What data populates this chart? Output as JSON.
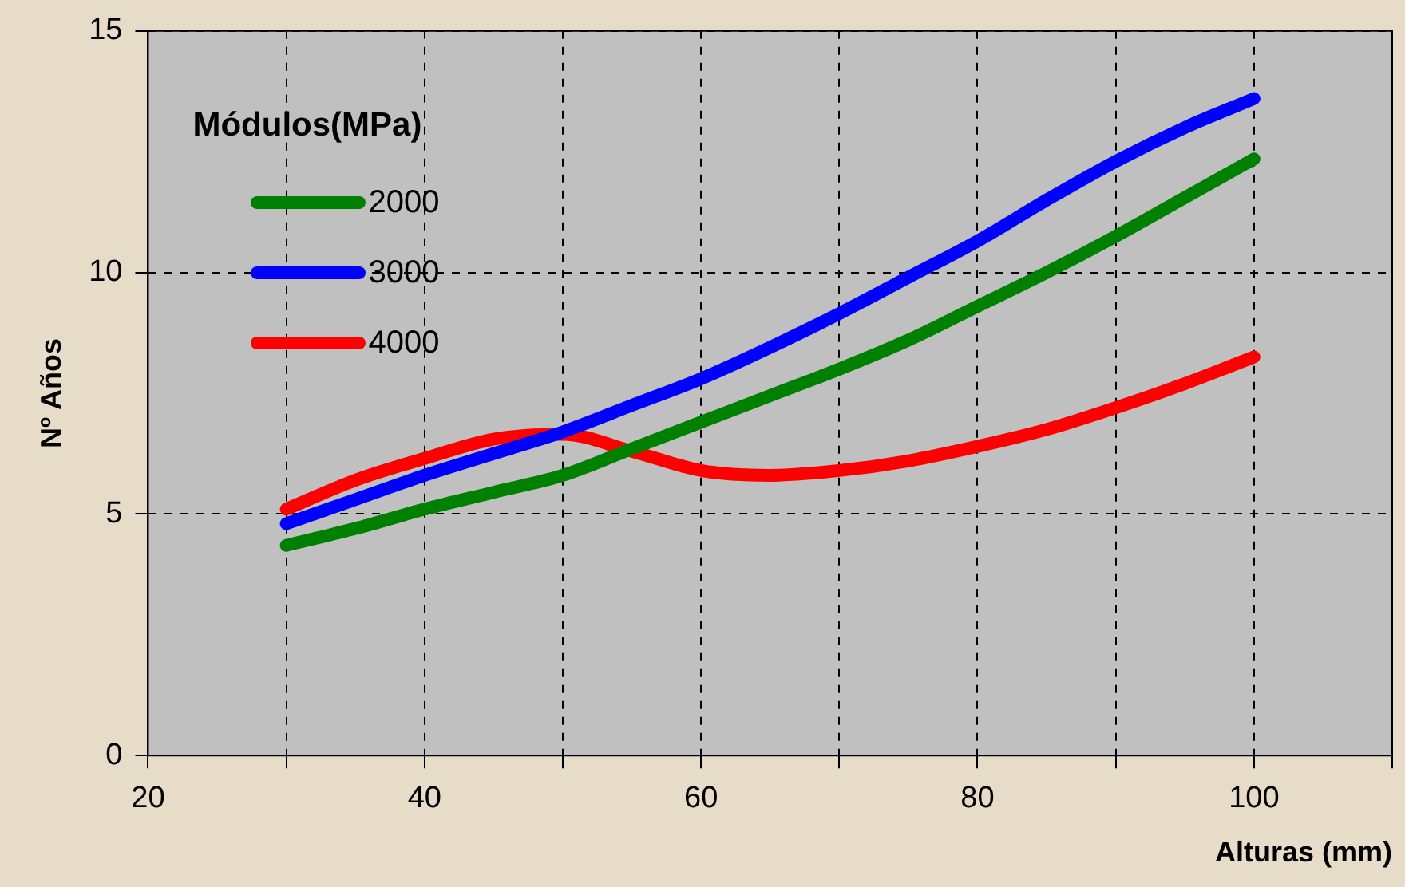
{
  "chart_data": {
    "type": "line",
    "xlabel": "Alturas (mm)",
    "ylabel": "Nº Años",
    "legend_title": "Módulos(MPa)",
    "legend": "top left",
    "grid": true,
    "marker": "none",
    "line_style": "solid",
    "xlim": [
      20,
      110
    ],
    "ylim": [
      0,
      15
    ],
    "xticks": [
      20,
      {
        "value": 30,
        "label": null
      },
      40,
      {
        "value": 50,
        "label": null
      },
      60,
      {
        "value": 70,
        "label": null
      },
      80,
      {
        "value": 90,
        "label": null
      },
      100,
      {
        "value": 110,
        "label": null
      }
    ],
    "yticks": [
      0,
      5,
      10,
      15
    ],
    "x": [
      30,
      35,
      40,
      45,
      50,
      55,
      60,
      65,
      70,
      75,
      80,
      85,
      90,
      95,
      100
    ],
    "series": [
      {
        "name": "2000",
        "color": "#008000",
        "values": [
          4.35,
          4.7,
          5.1,
          5.45,
          5.8,
          6.35,
          6.9,
          7.45,
          8.0,
          8.6,
          9.3,
          10.0,
          10.75,
          11.55,
          12.35
        ]
      },
      {
        "name": "3000",
        "color": "#0000ff",
        "values": [
          4.8,
          5.3,
          5.8,
          6.25,
          6.7,
          7.25,
          7.8,
          8.45,
          9.15,
          9.9,
          10.65,
          11.5,
          12.3,
          13.0,
          13.6
        ]
      },
      {
        "name": "4000",
        "color": "#ff0000",
        "values": [
          5.1,
          5.7,
          6.15,
          6.55,
          6.65,
          6.3,
          5.9,
          5.8,
          5.9,
          6.1,
          6.4,
          6.75,
          7.2,
          7.7,
          8.25
        ]
      }
    ]
  }
}
